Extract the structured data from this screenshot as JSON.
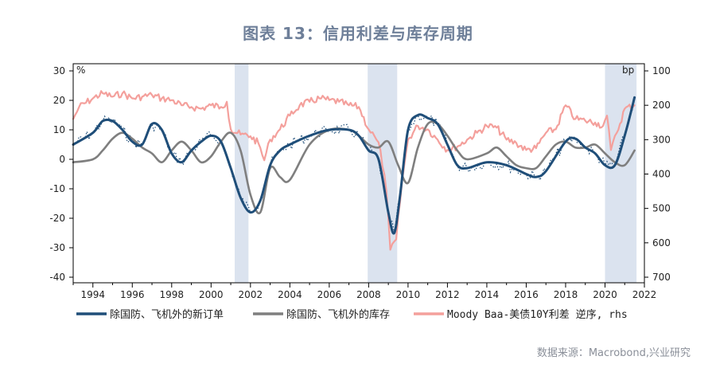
{
  "title": "图表 13：信用利差与库存周期",
  "source": "数据来源：Macrobond,兴业研究",
  "chart_data": {
    "type": "line",
    "left_unit": "%",
    "right_unit": "bp",
    "ylim_left": [
      -40,
      30
    ],
    "ylim_right": [
      700,
      100
    ],
    "right_inverted": true,
    "xlim": [
      1993,
      2022
    ],
    "x_ticks": [
      "1994",
      "1996",
      "1998",
      "2000",
      "2002",
      "2004",
      "2006",
      "2008",
      "2010",
      "2012",
      "2014",
      "2016",
      "2018",
      "2020",
      "2022"
    ],
    "y_left_ticks": [
      "30",
      "20",
      "10",
      "0",
      "-10",
      "-20",
      "-30",
      "-40"
    ],
    "y_right_ticks": [
      "100",
      "200",
      "300",
      "400",
      "500",
      "600",
      "700"
    ],
    "shaded_periods": [
      [
        2001.2,
        2001.9
      ],
      [
        2007.95,
        2009.45
      ],
      [
        2020.0,
        2021.6
      ]
    ],
    "colors": {
      "orders": "#1f4e79",
      "inventory": "#7f7f7f",
      "spread": "#f4a09c",
      "shade": "#dbe3ef",
      "raw": "#1f4e79"
    },
    "legend": [
      "除国防、飞机外的新订单",
      "除国防、飞机外的库存",
      "Moody Baa-美债10Y利差 逆序, rhs"
    ],
    "series": [
      {
        "name": "除国防、飞机外的新订单",
        "axis": "left",
        "x": [
          1993,
          1994,
          1994.5,
          1995,
          1995.5,
          1996,
          1996.5,
          1997,
          1997.5,
          1998,
          1998.5,
          1999,
          1999.5,
          2000,
          2000.5,
          2001,
          2001.5,
          2002,
          2002.5,
          2003,
          2003.5,
          2004,
          2005,
          2006,
          2007,
          2007.5,
          2008,
          2008.5,
          2009,
          2009.3,
          2009.6,
          2010,
          2010.5,
          2011,
          2011.5,
          2012,
          2012.5,
          2013,
          2014,
          2015,
          2016,
          2016.5,
          2017,
          2018,
          2018.5,
          2019,
          2019.5,
          2020,
          2020.5,
          2021,
          2021.5
        ],
        "y": [
          5,
          9,
          13,
          13,
          10,
          6,
          5,
          12,
          10,
          2,
          -1,
          3,
          6,
          8,
          6,
          -3,
          -13,
          -18,
          -14,
          -2,
          3,
          5,
          8,
          10,
          10,
          8,
          3,
          0,
          -18,
          -25,
          -12,
          10,
          15,
          14,
          12,
          5,
          -2,
          -3,
          -1,
          -2,
          -5,
          -6,
          -4,
          6,
          7,
          4,
          2,
          -2,
          -2,
          8,
          21
        ]
      },
      {
        "name": "除国防、飞机外的库存",
        "axis": "left",
        "x": [
          1993,
          1994,
          1994.5,
          1995,
          1995.5,
          1996,
          1996.5,
          1997,
          1997.5,
          1998,
          1998.5,
          1999,
          1999.5,
          2000,
          2000.5,
          2001,
          2001.5,
          2002,
          2002.5,
          2003,
          2003.5,
          2004,
          2005,
          2006,
          2007,
          2007.5,
          2008,
          2008.5,
          2009,
          2009.5,
          2010,
          2010.5,
          2011,
          2011.5,
          2012,
          2012.5,
          2013,
          2014,
          2014.5,
          2015,
          2015.5,
          2016,
          2016.5,
          2017,
          2017.5,
          2018,
          2018.5,
          2019,
          2019.5,
          2020,
          2020.5,
          2021,
          2021.5
        ],
        "y": [
          -1,
          0,
          3,
          7,
          9,
          7,
          4,
          2,
          -1,
          3,
          6,
          3,
          -1,
          1,
          6,
          9,
          3,
          -12,
          -18,
          -3,
          -6,
          -7,
          5,
          10,
          10,
          8,
          5,
          4,
          6,
          -2,
          -8,
          4,
          12,
          12,
          8,
          3,
          0,
          2,
          4,
          1,
          -2,
          -3,
          -3,
          1,
          5,
          6,
          4,
          4,
          5,
          2,
          -1,
          -2,
          3
        ]
      },
      {
        "name": "Moody Baa-美债10Y利差 逆序, rhs",
        "axis": "right",
        "x": [
          1993,
          1993.3,
          1994,
          1994.5,
          1995,
          1995.5,
          1996,
          1996.5,
          1997,
          1997.5,
          1998,
          1998.5,
          1999,
          1999.5,
          2000,
          2000.5,
          2000.8,
          2001,
          2001.5,
          2002,
          2002.4,
          2002.7,
          2003,
          2003.5,
          2004,
          2004.5,
          2005,
          2005.5,
          2006,
          2006.5,
          2007,
          2007.5,
          2008,
          2008.3,
          2008.6,
          2008.9,
          2009.1,
          2009.4,
          2009.7,
          2010,
          2010.5,
          2011,
          2011.5,
          2012,
          2012.5,
          2013,
          2013.5,
          2014,
          2014.5,
          2015,
          2015.5,
          2016,
          2016.5,
          2017,
          2017.5,
          2018,
          2018.5,
          2019,
          2019.5,
          2019.9,
          2020.1,
          2020.3,
          2020.6,
          2021,
          2021.5
        ],
        "y": [
          240,
          205,
          180,
          165,
          175,
          165,
          180,
          175,
          170,
          180,
          185,
          200,
          205,
          210,
          200,
          205,
          190,
          270,
          285,
          290,
          310,
          360,
          300,
          270,
          230,
          200,
          190,
          180,
          185,
          190,
          200,
          205,
          270,
          290,
          330,
          450,
          620,
          590,
          420,
          300,
          260,
          270,
          300,
          330,
          320,
          300,
          280,
          260,
          265,
          300,
          310,
          330,
          325,
          280,
          270,
          200,
          240,
          245,
          250,
          260,
          230,
          330,
          280,
          210,
          200
        ]
      }
    ]
  }
}
